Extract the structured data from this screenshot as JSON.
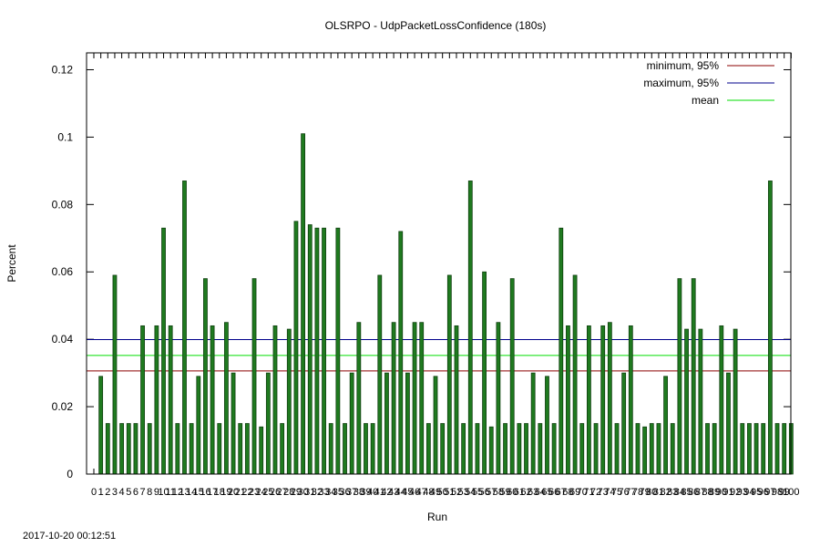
{
  "chart_data": {
    "type": "bar",
    "title": "OLSRPO - UdpPacketLossConfidence (180s)",
    "xlabel": "Run",
    "ylabel": "Percent",
    "ylim": [
      0,
      0.125
    ],
    "yticks": [
      "0",
      "0.02",
      "0.04",
      "0.06",
      "0.08",
      "0.1",
      "0.12"
    ],
    "xtick_values": [
      0,
      1,
      2,
      3,
      4,
      5,
      6,
      7,
      8,
      9,
      10,
      11,
      12,
      13,
      14,
      15,
      16,
      17,
      18,
      19,
      20,
      21,
      22,
      23,
      24,
      25,
      26,
      27,
      28,
      29,
      30,
      31,
      32,
      33,
      34,
      35,
      36,
      37,
      38,
      39,
      40,
      41,
      42,
      43,
      44,
      45,
      46,
      47,
      48,
      49,
      50,
      51,
      52,
      53,
      54,
      55,
      56,
      57,
      58,
      59,
      60,
      61,
      62,
      63,
      64,
      65,
      66,
      67,
      68,
      69,
      70,
      71,
      72,
      73,
      74,
      75,
      76,
      77,
      78,
      79,
      80,
      81,
      82,
      83,
      84,
      85,
      86,
      87,
      88,
      89,
      90,
      91,
      92,
      93,
      94,
      95,
      96,
      97,
      98,
      99,
      100
    ],
    "bar_color": "#1f7a1f",
    "bar_edge_color": "#0f3f0f",
    "values": [
      0.029,
      0.015,
      0.059,
      0.015,
      0.015,
      0.015,
      0.044,
      0.015,
      0.044,
      0.073,
      0.044,
      0.015,
      0.087,
      0.015,
      0.029,
      0.058,
      0.044,
      0.015,
      0.045,
      0.03,
      0.015,
      0.015,
      0.058,
      0.014,
      0.03,
      0.044,
      0.015,
      0.043,
      0.075,
      0.101,
      0.074,
      0.073,
      0.073,
      0.015,
      0.073,
      0.015,
      0.03,
      0.045,
      0.015,
      0.015,
      0.059,
      0.03,
      0.045,
      0.072,
      0.03,
      0.045,
      0.045,
      0.015,
      0.029,
      0.015,
      0.059,
      0.044,
      0.015,
      0.087,
      0.015,
      0.06,
      0.014,
      0.045,
      0.015,
      0.058,
      0.015,
      0.015,
      0.03,
      0.015,
      0.029,
      0.015,
      0.073,
      0.044,
      0.059,
      0.015,
      0.044,
      0.015,
      0.044,
      0.045,
      0.015,
      0.03,
      0.044,
      0.015,
      0.014,
      0.015,
      0.015,
      0.029,
      0.015,
      0.058,
      0.043,
      0.058,
      0.043,
      0.015,
      0.015,
      0.044,
      0.03,
      0.043,
      0.015,
      0.015,
      0.015,
      0.015,
      0.087,
      0.015,
      0.015,
      0.015
    ],
    "lines": [
      {
        "name": "minimum, 95%",
        "value": 0.0306,
        "color": "#8b0000"
      },
      {
        "name": "maximum, 95%",
        "value": 0.0399,
        "color": "#00008b"
      },
      {
        "name": "mean",
        "value": 0.0352,
        "color": "#00dd00"
      }
    ],
    "legend_position": "top-right",
    "grid": false
  },
  "timestamp": "2017-10-20 00:12:51"
}
